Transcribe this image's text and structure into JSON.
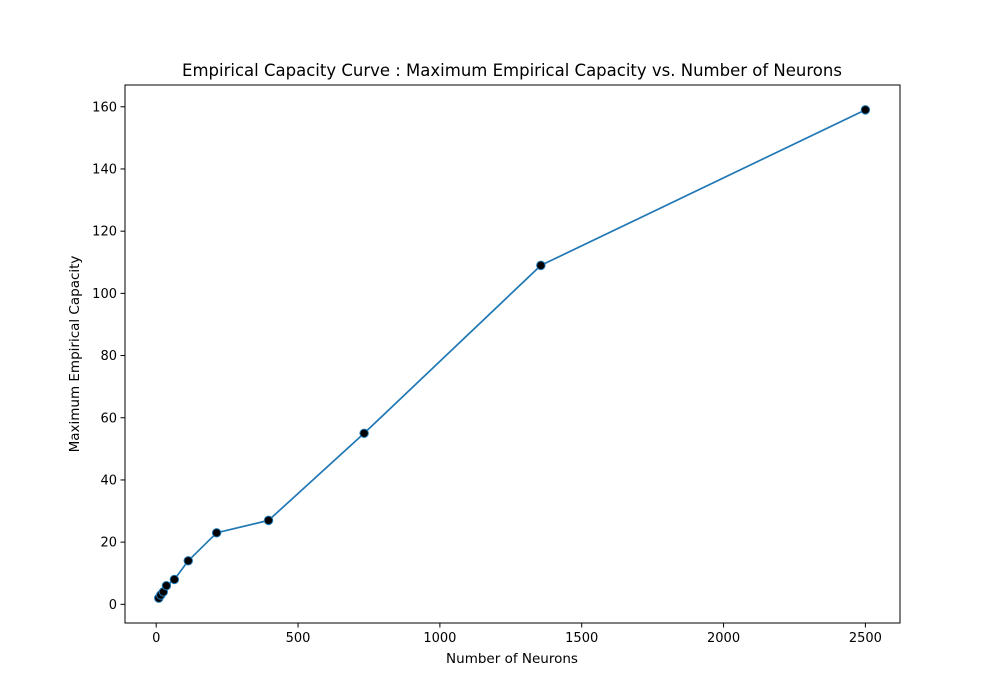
{
  "chart_data": {
    "type": "line",
    "title": "Empirical Capacity Curve : Maximum Empirical Capacity vs. Number of Neurons",
    "xlabel": "Number of Neurons",
    "ylabel": "Maximum Empirical Capacity",
    "xlim": [
      -110,
      2622
    ],
    "ylim": [
      -6,
      167
    ],
    "xticks": [
      0,
      500,
      1000,
      1500,
      2000,
      2500
    ],
    "yticks": [
      0,
      20,
      40,
      60,
      80,
      100,
      120,
      140,
      160
    ],
    "grid": false,
    "series": [
      {
        "x": [
          9,
          16,
          25,
          36,
          64,
          113,
          213,
          396,
          733,
          1356,
          2500
        ],
        "y": [
          2,
          3,
          4,
          6,
          8,
          14,
          23,
          27,
          55,
          109,
          159
        ],
        "line_color": "#1f77b4",
        "marker_color": "#000000"
      }
    ]
  }
}
